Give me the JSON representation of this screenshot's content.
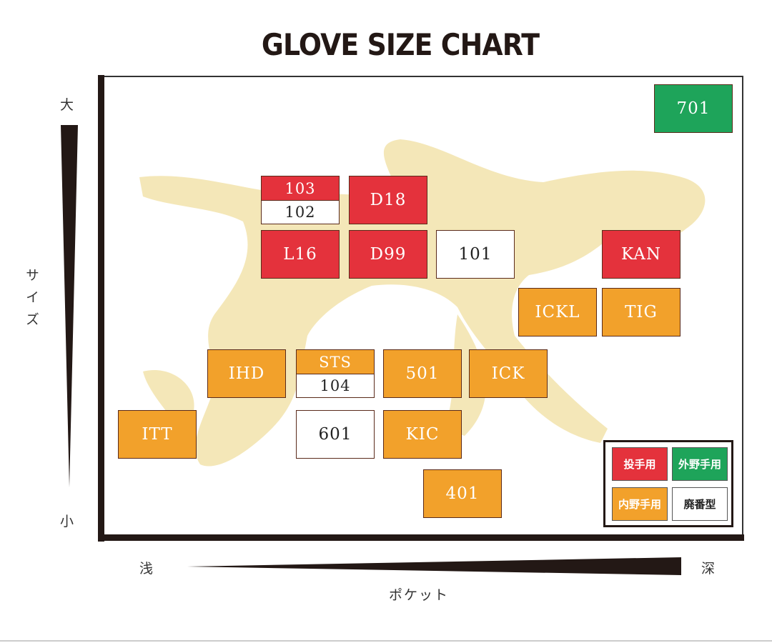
{
  "title": "GLOVE SIZE CHART",
  "axes": {
    "y_label": "サイズ",
    "y_top": "大",
    "y_bottom": "小",
    "x_label": "ポケット",
    "x_left": "浅",
    "x_right": "深"
  },
  "colors": {
    "pitcher": "#e4323c",
    "outfield": "#1ea45a",
    "infield": "#f2a12b",
    "discontinued": "#ffffff",
    "background_shape": "#f4e7b8"
  },
  "legend": [
    {
      "label": "投手用",
      "category": "pitcher"
    },
    {
      "label": "外野手用",
      "category": "outfield"
    },
    {
      "label": "内野手用",
      "category": "infield"
    },
    {
      "label": "廃番型",
      "category": "discontinued"
    }
  ],
  "items": [
    {
      "label": "701",
      "category": "outfield"
    },
    {
      "label": "103",
      "category": "pitcher",
      "sub_label": "102",
      "sub_category": "discontinued"
    },
    {
      "label": "D18",
      "category": "pitcher"
    },
    {
      "label": "L16",
      "category": "pitcher"
    },
    {
      "label": "D99",
      "category": "pitcher"
    },
    {
      "label": "101",
      "category": "discontinued"
    },
    {
      "label": "KAN",
      "category": "pitcher"
    },
    {
      "label": "ICKL",
      "category": "infield"
    },
    {
      "label": "TIG",
      "category": "infield"
    },
    {
      "label": "IHD",
      "category": "infield"
    },
    {
      "label": "STS",
      "category": "infield",
      "sub_label": "104",
      "sub_category": "discontinued"
    },
    {
      "label": "501",
      "category": "infield"
    },
    {
      "label": "ICK",
      "category": "infield"
    },
    {
      "label": "ITT",
      "category": "infield"
    },
    {
      "label": "601",
      "category": "discontinued"
    },
    {
      "label": "KIC",
      "category": "infield"
    },
    {
      "label": "401",
      "category": "infield"
    }
  ]
}
